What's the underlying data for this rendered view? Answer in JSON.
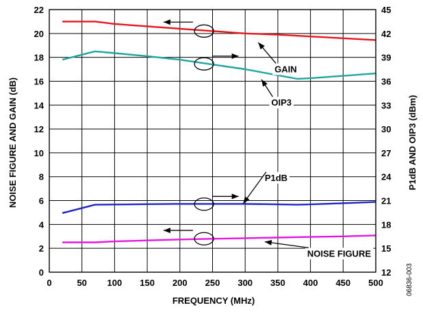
{
  "chart_data": {
    "type": "line",
    "title": "",
    "xlabel": "FREQUENCY (MHz)",
    "ylabel_left": "NOISE FIGURE AND GAIN (dB)",
    "ylabel_right": "P1dB AND OIP3 (dBm)",
    "xlim": [
      0,
      500
    ],
    "ylim_left": [
      0,
      22
    ],
    "ylim_right": [
      12,
      45
    ],
    "grid": true,
    "x_ticks": [
      0,
      50,
      100,
      150,
      200,
      250,
      300,
      350,
      400,
      450,
      500
    ],
    "y_left_ticks": [
      0,
      2,
      4,
      6,
      8,
      10,
      12,
      14,
      16,
      18,
      20,
      22
    ],
    "y_right_ticks": [
      12,
      15,
      18,
      21,
      24,
      27,
      30,
      33,
      36,
      39,
      42,
      45
    ],
    "series": [
      {
        "name": "GAIN",
        "axis": "left",
        "color": "#e8141c",
        "x": [
          20,
          70,
          100,
          150,
          200,
          250,
          300,
          350,
          400,
          450,
          500
        ],
        "y": [
          21.0,
          21.0,
          20.8,
          20.6,
          20.4,
          20.2,
          20.0,
          19.9,
          19.75,
          19.6,
          19.45
        ]
      },
      {
        "name": "OIP3",
        "axis": "left",
        "color": "#1fa59e",
        "x": [
          20,
          70,
          100,
          150,
          200,
          250,
          300,
          350,
          380,
          400,
          450,
          500
        ],
        "y": [
          17.8,
          18.5,
          18.35,
          18.1,
          17.8,
          17.4,
          17.0,
          16.5,
          16.2,
          16.25,
          16.45,
          16.65
        ]
      },
      {
        "name": "P1dB",
        "axis": "left",
        "color": "#1c23c8",
        "x": [
          20,
          70,
          100,
          150,
          200,
          250,
          300,
          350,
          380,
          400,
          450,
          500
        ],
        "y": [
          4.95,
          5.65,
          5.67,
          5.7,
          5.72,
          5.72,
          5.72,
          5.68,
          5.65,
          5.68,
          5.78,
          5.88
        ]
      },
      {
        "name": "NOISE FIGURE",
        "axis": "left",
        "color": "#e514e0",
        "x": [
          20,
          70,
          100,
          150,
          200,
          250,
          300,
          350,
          400,
          450,
          500
        ],
        "y": [
          2.5,
          2.5,
          2.58,
          2.66,
          2.74,
          2.8,
          2.85,
          2.9,
          2.95,
          3.0,
          3.08
        ]
      }
    ],
    "annotations": [
      {
        "text": "GAIN",
        "target": "GAIN",
        "label_x": 345,
        "label_y": 16.75,
        "tip_x": 320,
        "tip_y": 19.25
      },
      {
        "text": "OIP3",
        "target": "OIP3",
        "label_x": 340,
        "label_y": 13.95,
        "tip_x": 325,
        "tip_y": 16.15
      },
      {
        "text": "P1dB",
        "target": "P1dB",
        "label_x": 330,
        "label_y": 7.65,
        "tip_x": 297,
        "tip_y": 5.75
      },
      {
        "text": "NOISE FIGURE",
        "target": "NOISE FIGURE",
        "label_x": 395,
        "label_y": 1.3,
        "tip_x": 330,
        "tip_y": 2.55
      }
    ],
    "axis_pointers": [
      {
        "series": "GAIN",
        "cx": 237,
        "cy": 20.2,
        "dir": "left",
        "arrow_x0": 220,
        "arrow_x1": 175,
        "arrow_y": 20.95
      },
      {
        "series": "OIP3",
        "cx": 237,
        "cy": 17.45,
        "dir": "right",
        "arrow_x0": 250,
        "arrow_x1": 290,
        "arrow_y": 18.1
      },
      {
        "series": "P1dB",
        "cx": 237,
        "cy": 5.7,
        "dir": "right",
        "arrow_x0": 250,
        "arrow_x1": 290,
        "arrow_y": 6.35
      },
      {
        "series": "NOISE FIGURE",
        "cx": 237,
        "cy": 2.8,
        "dir": "left",
        "arrow_x0": 220,
        "arrow_x1": 175,
        "arrow_y": 3.5
      }
    ]
  },
  "figure_id": "06836-003"
}
